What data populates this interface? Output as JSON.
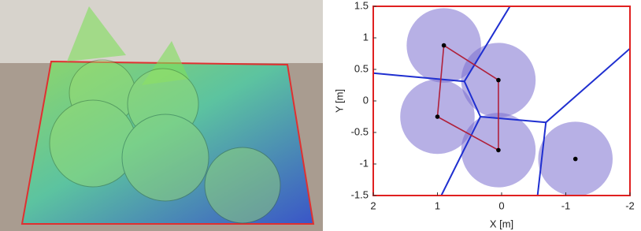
{
  "chart_data": {
    "type": "scatter",
    "xlabel": "X [m]",
    "ylabel": "Y [m]",
    "x": [
      0.9,
      0.05,
      1.0,
      0.05,
      -1.15
    ],
    "values": [
      0.88,
      0.33,
      -0.25,
      -0.78,
      -0.92
    ],
    "radius": 0.58,
    "circle_color": "#7b6fd0",
    "point_color": "#000000",
    "links": [
      [
        0,
        1
      ],
      [
        1,
        3
      ],
      [
        3,
        2
      ],
      [
        2,
        0
      ]
    ],
    "link_color": "#b0203a",
    "boundaries": [
      {
        "x": [
          2,
          0.58
        ],
        "y": [
          0.44,
          0.31
        ]
      },
      {
        "x": [
          0.58,
          -0.13
        ],
        "y": [
          0.31,
          1.5
        ]
      },
      {
        "x": [
          0.58,
          0.33
        ],
        "y": [
          0.31,
          -0.25
        ]
      },
      {
        "x": [
          0.33,
          0.94
        ],
        "y": [
          -0.25,
          -1.5
        ]
      },
      {
        "x": [
          0.33,
          -0.69
        ],
        "y": [
          -0.25,
          -0.34
        ]
      },
      {
        "x": [
          -0.69,
          -2
        ],
        "y": [
          -0.34,
          0.83
        ]
      },
      {
        "x": [
          -0.69,
          -0.56
        ],
        "y": [
          -0.34,
          -1.5
        ]
      }
    ],
    "boundary_color": "#1f2fd0",
    "xlim": [
      2,
      -2
    ],
    "ylim": [
      -1.5,
      1.5
    ],
    "xticks": [
      2,
      1,
      0,
      -1,
      -2
    ],
    "yticks": [
      -1.5,
      -1,
      -0.5,
      0,
      0.5,
      1,
      1.5
    ]
  }
}
